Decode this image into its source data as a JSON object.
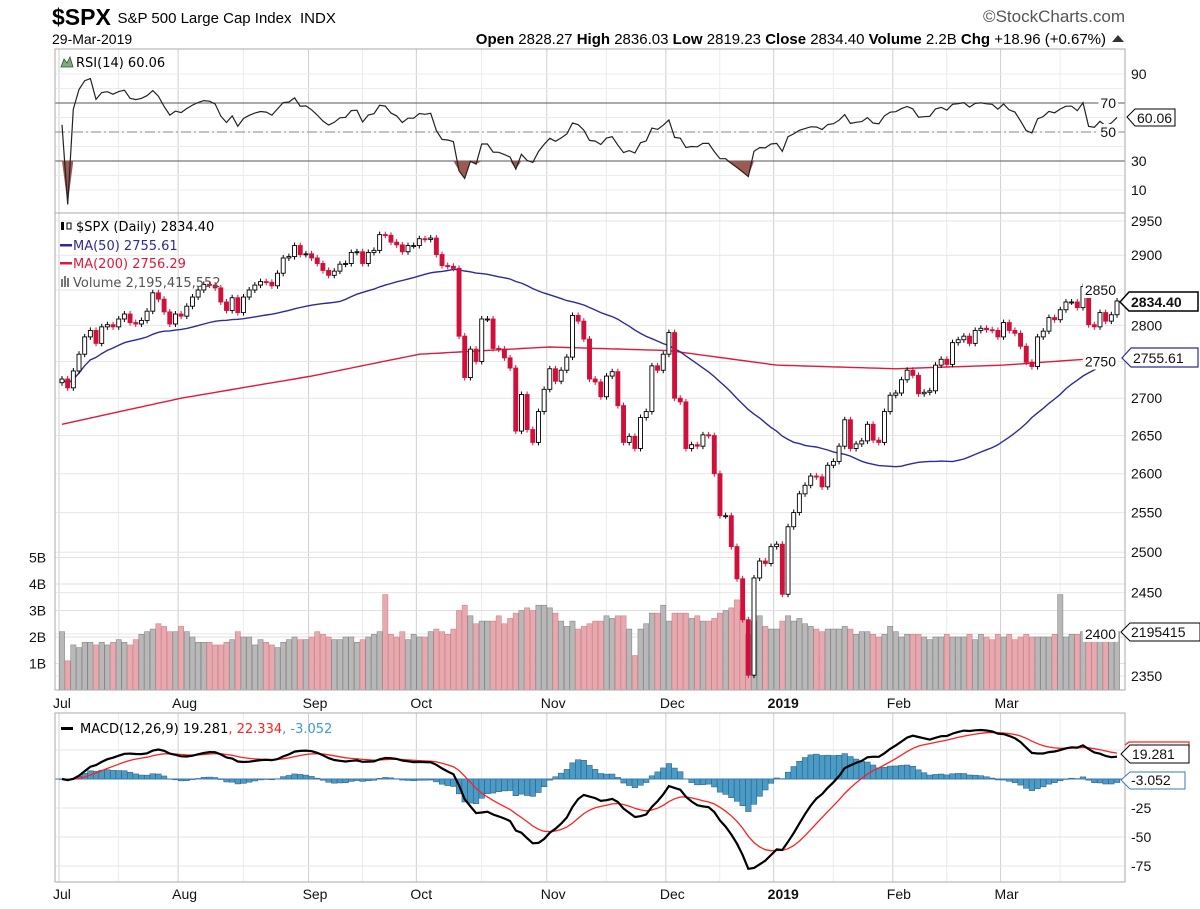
{
  "header": {
    "symbol": "$SPX",
    "name": "S&P 500 Large Cap Index",
    "exchange": "INDX",
    "date": "29-Mar-2019",
    "open_label": "Open",
    "open": "2828.27",
    "high_label": "High",
    "high": "2836.03",
    "low_label": "Low",
    "low": "2819.23",
    "close_label": "Close",
    "close": "2834.40",
    "volume_label": "Volume",
    "volume": "2.2B",
    "chg_label": "Chg",
    "chg": "+18.96 (+0.67%)",
    "logo": "©StockCharts.com"
  },
  "legends": {
    "rsi": "RSI(14) 60.06",
    "price": "$SPX (Daily) 2834.40",
    "ma50": "MA(50) 2755.61",
    "ma200": "MA(200) 2756.29",
    "volume": "Volume 2,195,415,552",
    "macd_main": "MACD(12,26,9) 19.281",
    "macd_signal": ", 22.334",
    "macd_hist": ", -3.052"
  },
  "tags": {
    "rsi": "60.06",
    "price": "2834.40",
    "ma": "2755.61",
    "volume": "2195415",
    "macd": "19.281",
    "hist": "-3.052"
  },
  "colors": {
    "up": "#000000",
    "down": "#d0103a",
    "ma50": "#2b2b9e",
    "ma200": "#e0193c",
    "volume_up": "#b8b8b8",
    "volume_down": "#e8a8b0",
    "rsi_fill": "#9b5a52",
    "macd": "#000000",
    "signal": "#ff2020",
    "hist": "#4a9bc6"
  },
  "chart_data": {
    "type": "candlestick",
    "price_scale": "log",
    "grid": true,
    "rsi_axis": {
      "ticks": [
        90,
        70,
        50,
        30,
        10
      ],
      "overbought": 70,
      "oversold": 30,
      "range": [
        0,
        100
      ]
    },
    "price_axis": {
      "ticks": [
        2950,
        2900,
        2850,
        2800,
        2750,
        2700,
        2650,
        2600,
        2550,
        2500,
        2450,
        2400,
        2350
      ],
      "range": [
        2335,
        2960
      ]
    },
    "volume_axis": {
      "ticks": [
        "1B",
        "2B",
        "3B",
        "4B",
        "5B"
      ],
      "unit": "B"
    },
    "macd_axis": {
      "ticks": [
        -25,
        -50,
        -75
      ],
      "range": [
        -88,
        56
      ]
    },
    "months": [
      {
        "label": "Jul",
        "closes": [
          2726,
          2714,
          2737,
          2760,
          2784,
          2793,
          2775,
          2798,
          2801,
          2798,
          2809,
          2816,
          2804,
          2802,
          2807,
          2820,
          2846,
          2837,
          2819,
          2802,
          2816
        ],
        "volume": [
          2.2,
          1.1,
          1.7,
          1.6,
          1.8,
          1.8,
          1.7,
          1.8,
          1.7,
          1.8,
          1.9,
          1.8,
          1.7,
          1.9,
          2.1,
          2.2,
          2.3,
          2.5,
          2.4,
          2.2,
          2.2
        ]
      },
      {
        "label": "Aug",
        "closes": [
          2813,
          2827,
          2840,
          2850,
          2858,
          2857,
          2853,
          2833,
          2821,
          2839,
          2818,
          2840,
          2850,
          2857,
          2862,
          2861,
          2856,
          2874,
          2896,
          2898,
          2914,
          2901,
          2902
        ],
        "volume": [
          2.4,
          2.2,
          2.0,
          1.8,
          1.8,
          1.8,
          1.7,
          1.7,
          1.8,
          1.9,
          2.2,
          2.0,
          2.0,
          1.7,
          1.9,
          1.8,
          1.7,
          1.6,
          1.8,
          1.9,
          2.0,
          1.9,
          1.9
        ]
      },
      {
        "label": "Sep",
        "closes": [
          2896,
          2888,
          2878,
          2871,
          2877,
          2887,
          2888,
          2904,
          2905,
          2888,
          2904,
          2907,
          2930,
          2929,
          2919,
          2915,
          2905,
          2914,
          2914
        ],
        "volume": [
          2.0,
          2.2,
          2.1,
          2.0,
          1.9,
          1.9,
          2.0,
          2.0,
          1.8,
          1.9,
          2.0,
          2.1,
          2.2,
          3.6,
          2.1,
          2.0,
          2.2,
          1.9,
          2.1
        ]
      },
      {
        "label": "Oct",
        "closes": [
          2924,
          2923,
          2925,
          2901,
          2885,
          2884,
          2881,
          2785,
          2728,
          2767,
          2750,
          2809,
          2809,
          2768,
          2767,
          2755,
          2741,
          2656,
          2705,
          2658,
          2641,
          2682,
          2712
        ],
        "volume": [
          2.0,
          2.0,
          2.2,
          2.3,
          2.2,
          2.1,
          2.3,
          3.0,
          3.2,
          2.8,
          2.5,
          2.6,
          2.6,
          2.6,
          2.8,
          2.5,
          2.7,
          2.9,
          3.0,
          3.1,
          3.0,
          3.2,
          3.2
        ]
      },
      {
        "label": "Nov",
        "closes": [
          2740,
          2723,
          2738,
          2756,
          2814,
          2806,
          2781,
          2726,
          2722,
          2702,
          2730,
          2736,
          2690,
          2641,
          2649,
          2633,
          2674,
          2682,
          2744,
          2738,
          2760
        ],
        "volume": [
          3.1,
          2.9,
          2.6,
          2.4,
          2.6,
          2.3,
          2.4,
          2.5,
          2.6,
          2.6,
          2.8,
          2.7,
          2.8,
          2.8,
          2.3,
          1.3,
          2.3,
          2.5,
          2.9,
          2.9,
          3.2
        ]
      },
      {
        "label": "Dec",
        "closes": [
          2790,
          2700,
          2695,
          2633,
          2638,
          2636,
          2651,
          2650,
          2600,
          2546,
          2546,
          2507,
          2467,
          2417,
          2351,
          2468,
          2489,
          2486,
          2507
        ],
        "volume": [
          2.6,
          2.9,
          2.9,
          2.9,
          2.7,
          2.8,
          2.6,
          2.6,
          2.7,
          2.9,
          3.0,
          3.1,
          3.4,
          3.0,
          2.1,
          2.6,
          2.8,
          2.4,
          2.3
        ]
      },
      {
        "label": "2019",
        "closes": [
          2510,
          2448,
          2532,
          2550,
          2574,
          2585,
          2597,
          2596,
          2583,
          2611,
          2616,
          2636,
          2671,
          2633,
          2639,
          2643,
          2665,
          2644,
          2641,
          2682,
          2704
        ],
        "volume": [
          2.3,
          2.6,
          2.8,
          2.6,
          2.7,
          2.5,
          2.4,
          2.3,
          2.2,
          2.3,
          2.3,
          2.3,
          2.4,
          2.3,
          2.1,
          2.2,
          2.2,
          2.1,
          2.0,
          2.1,
          2.4
        ]
      },
      {
        "label": "Feb",
        "closes": [
          2707,
          2725,
          2738,
          2731,
          2706,
          2708,
          2710,
          2745,
          2753,
          2746,
          2776,
          2780,
          2785,
          2775,
          2793,
          2796,
          2794,
          2793,
          2784
        ],
        "volume": [
          2.2,
          2.0,
          2.1,
          2.1,
          2.1,
          2.0,
          1.9,
          2.0,
          2.0,
          2.1,
          2.0,
          2.0,
          2.0,
          2.1,
          1.9,
          2.1,
          2.0,
          1.9,
          2.1
        ]
      },
      {
        "label": "Mar",
        "closes": [
          2804,
          2793,
          2789,
          2771,
          2749,
          2743,
          2784,
          2792,
          2811,
          2808,
          2822,
          2833,
          2833,
          2825,
          2855,
          2801,
          2798,
          2818,
          2806,
          2815,
          2834.4
        ],
        "volume": [
          2.0,
          2.1,
          1.9,
          2.0,
          2.1,
          2.0,
          2.0,
          2.0,
          2.0,
          2.1,
          3.6,
          2.0,
          2.1,
          2.1,
          2.2,
          2.3,
          2.1,
          2.0,
          2.0,
          1.9,
          2.2
        ]
      }
    ],
    "ma200_month_start": [
      2665,
      2700,
      2730,
      2760,
      2770,
      2765,
      2745,
      2740,
      2745
    ],
    "ma200_last": 2756.29
  }
}
